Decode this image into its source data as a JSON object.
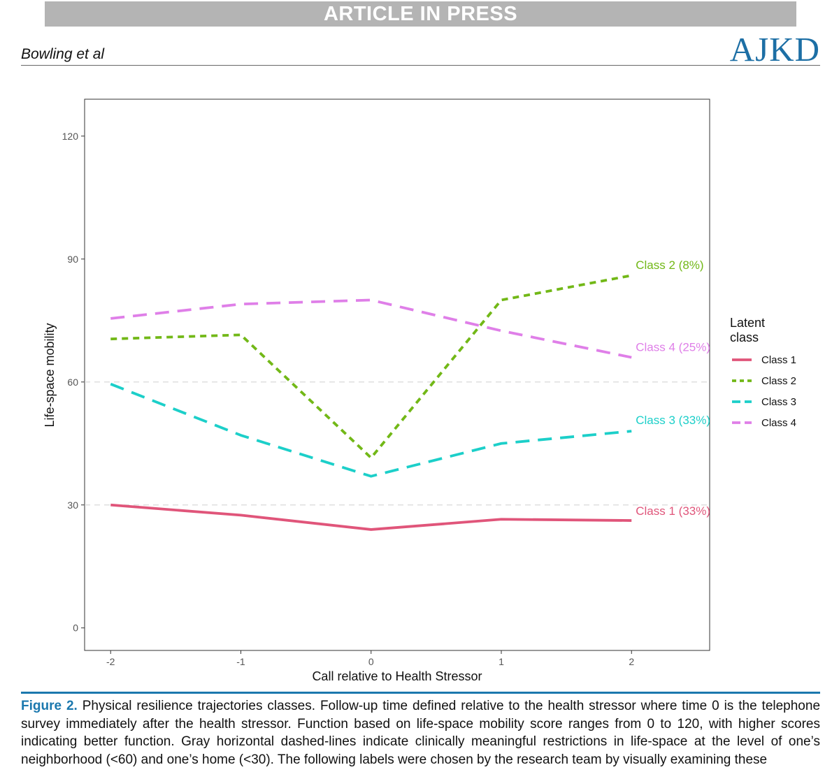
{
  "header": {
    "banner": "ARTICLE IN PRESS",
    "authors": "Bowling et al",
    "journal": "AJKD"
  },
  "chart_data": {
    "type": "line",
    "title": "",
    "xlabel": "Call relative to Health Stressor",
    "ylabel": "Life-space mobility",
    "x": [
      -2,
      -1,
      0,
      1,
      2
    ],
    "x_tick_labels": [
      "-2",
      "-1",
      "0",
      "1",
      "2"
    ],
    "xlim": [
      -2.2,
      2.6
    ],
    "ylim": [
      -5.5,
      129
    ],
    "y_ticks": [
      0,
      30,
      60,
      90,
      120
    ],
    "reference_lines": [
      30,
      60
    ],
    "grid": false,
    "legend": {
      "title_line1": "Latent",
      "title_line2": "class",
      "placement": "right",
      "items": [
        "Class 1",
        "Class 2",
        "Class 3",
        "Class 4"
      ]
    },
    "series": [
      {
        "name": "Class 1",
        "end_label": "Class 1 (33%)",
        "values": [
          30,
          27.5,
          24,
          26.5,
          26.2
        ],
        "color": "#e0557a",
        "dash": "solid"
      },
      {
        "name": "Class 2",
        "end_label": "Class 2 (8%)",
        "values": [
          70.5,
          71.5,
          41.5,
          80,
          86
        ],
        "color": "#72b817",
        "dash": "short"
      },
      {
        "name": "Class 3",
        "end_label": "Class 3 (33%)",
        "values": [
          59.5,
          47,
          37,
          45,
          48
        ],
        "color": "#1ccfc9",
        "dash": "long"
      },
      {
        "name": "Class 4",
        "end_label": "Class 4 (25%)",
        "values": [
          75.5,
          79,
          80,
          72.5,
          66
        ],
        "color": "#df7fe8",
        "dash": "long"
      }
    ]
  },
  "caption": {
    "label": "Figure 2.",
    "text": " Physical resilience trajectories classes. Follow-up time defined relative to the health stressor where time 0 is the telephone survey immediately after the health stressor. Function based on life-space mobility score ranges from 0 to 120, with higher scores indicating better function. Gray horizontal dashed-lines indicate clinically meaningful restrictions in life-space at the level of one’s neighborhood (<60) and one’s home (<30). The following labels were chosen by the research team by visually examining these"
  }
}
